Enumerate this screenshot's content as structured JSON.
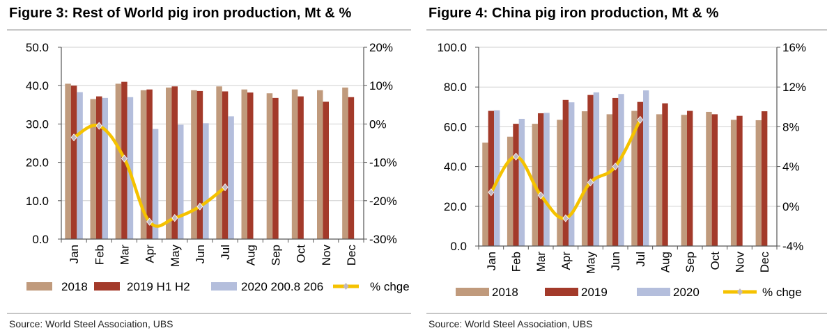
{
  "charts": [
    {
      "title": "Figure 3: Rest of World pig iron production, Mt & %",
      "source": "Source:  World Steel Association, UBS",
      "chart_data": {
        "type": "bar",
        "categories": [
          "Jan",
          "Feb",
          "Mar",
          "Apr",
          "May",
          "Jun",
          "Jul",
          "Aug",
          "Sep",
          "Oct",
          "Nov",
          "Dec"
        ],
        "series": [
          {
            "name": "2018",
            "kind": "bar",
            "axis": "left",
            "values": [
              40.5,
              36.5,
              40.5,
              38.8,
              39.5,
              38.8,
              39.8,
              39.0,
              38.0,
              39.0,
              38.8,
              39.5
            ]
          },
          {
            "name": "2019 H1 H2",
            "kind": "bar",
            "axis": "left",
            "values": [
              40.0,
              37.2,
              41.0,
              39.0,
              39.8,
              38.6,
              38.5,
              38.2,
              36.8,
              37.2,
              35.8,
              37.0
            ]
          },
          {
            "name": "2020 200.8 206",
            "kind": "bar",
            "axis": "left",
            "values": [
              38.3,
              36.8,
              37.0,
              28.7,
              29.8,
              30.2,
              32.0,
              null,
              null,
              null,
              null,
              null
            ]
          },
          {
            "name": "% chge",
            "kind": "line",
            "axis": "right",
            "values": [
              -3.5,
              -0.5,
              -9.0,
              -25.5,
              -24.5,
              -21.5,
              -16.5,
              null,
              null,
              null,
              null,
              null
            ]
          }
        ],
        "ylim": [
          0,
          50
        ],
        "yticks": [
          "0.0",
          "10.0",
          "20.0",
          "30.0",
          "40.0",
          "50.0"
        ],
        "y2lim": [
          -30,
          20
        ],
        "y2ticks": [
          "-30%",
          "-20%",
          "-10%",
          "0%",
          "10%",
          "20%"
        ]
      }
    },
    {
      "title": "Figure 4: China pig iron production, Mt & %",
      "source": "Source:  World Steel Association, UBS",
      "chart_data": {
        "type": "bar",
        "categories": [
          "Jan",
          "Feb",
          "Mar",
          "Apr",
          "May",
          "Jun",
          "Jul",
          "Aug",
          "Sep",
          "Oct",
          "Nov",
          "Dec"
        ],
        "series": [
          {
            "name": "2018",
            "kind": "bar",
            "axis": "left",
            "values": [
              52.0,
              55.0,
              61.5,
              63.5,
              67.8,
              66.3,
              68.0,
              66.3,
              66.0,
              67.5,
              63.5,
              63.3
            ]
          },
          {
            "name": "2019",
            "kind": "bar",
            "axis": "left",
            "values": [
              68.0,
              61.5,
              66.8,
              73.5,
              76.0,
              74.5,
              72.5,
              71.8,
              68.0,
              66.3,
              65.5,
              67.8
            ]
          },
          {
            "name": "2020",
            "kind": "bar",
            "axis": "left",
            "values": [
              68.3,
              64.0,
              67.0,
              72.3,
              77.3,
              76.5,
              78.3,
              null,
              null,
              null,
              null,
              null
            ]
          },
          {
            "name": "% chge",
            "kind": "line",
            "axis": "right",
            "values": [
              1.4,
              5.0,
              1.1,
              -1.2,
              2.4,
              4.0,
              8.7,
              null,
              null,
              null,
              null,
              null
            ]
          }
        ],
        "ylim": [
          0,
          100
        ],
        "yticks": [
          "0.0",
          "20.0",
          "40.0",
          "60.0",
          "80.0",
          "100.0"
        ],
        "y2lim": [
          -4,
          16
        ],
        "y2ticks": [
          "-4%",
          "0%",
          "4%",
          "8%",
          "12%",
          "16%"
        ]
      }
    }
  ],
  "colors": {
    "s2018": "#c09a7c",
    "s2019": "#a33a2a",
    "s2020": "#b4bedc",
    "line": "#f5c200",
    "marker": "#c0b8c0",
    "grid": "#cfcfcf",
    "axis": "#555555"
  }
}
